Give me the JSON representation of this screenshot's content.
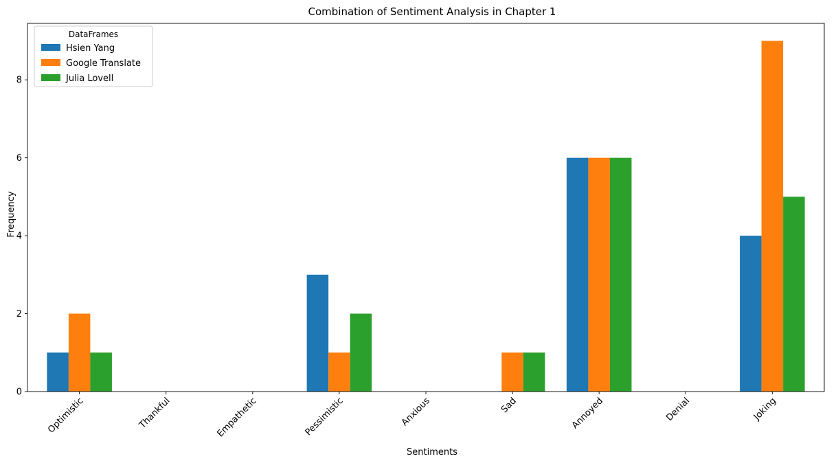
{
  "chart_data": {
    "type": "bar",
    "title": "Combination of Sentiment Analysis in Chapter 1",
    "xlabel": "Sentiments",
    "ylabel": "Frequency",
    "categories": [
      "Optimistic",
      "Thankful",
      "Empathetic",
      "Pessimistic",
      "Anxious",
      "Sad",
      "Annoyed",
      "Denial",
      "Joking"
    ],
    "series": [
      {
        "name": "Hsien Yang",
        "color": "#1f77b4",
        "values": [
          1,
          0,
          0,
          3,
          0,
          0,
          6,
          0,
          4
        ]
      },
      {
        "name": "Google Translate",
        "color": "#ff7f0e",
        "values": [
          2,
          0,
          0,
          1,
          0,
          1,
          6,
          0,
          9
        ]
      },
      {
        "name": "Julia Lovell",
        "color": "#2ca02c",
        "values": [
          1,
          0,
          0,
          2,
          0,
          1,
          6,
          0,
          5
        ]
      }
    ],
    "ylim": [
      0,
      9.45
    ],
    "yticks": [
      0,
      2,
      4,
      6,
      8
    ],
    "legend": {
      "title": "DataFrames",
      "placement": "top-left"
    },
    "grid": false
  }
}
